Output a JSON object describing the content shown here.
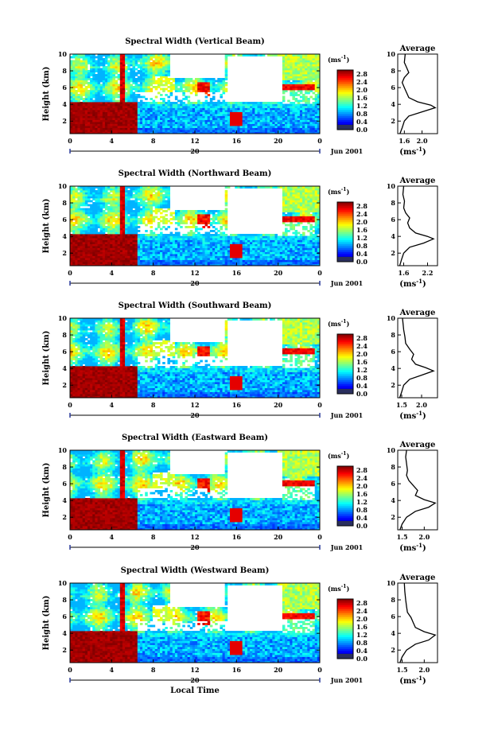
{
  "chart_data": [
    {
      "type": "heatmap",
      "title": "Spectral Width (Vertical Beam)",
      "ylabel": "Height (km)",
      "x_ticks": [
        "0",
        "4",
        "8",
        "12",
        "16",
        "20",
        "0"
      ],
      "y_ticks": [
        "2",
        "4",
        "6",
        "8",
        "10"
      ],
      "xlim": [
        0,
        24
      ],
      "ylim": [
        0.5,
        10
      ],
      "date_tick": "20",
      "date_label": "Jun 2001",
      "colorbar": {
        "unit": "(ms",
        "unit_exp": "-1",
        "unit_close": ")",
        "ticks": [
          "0.0",
          "0.4",
          "0.8",
          "1.2",
          "1.6",
          "2.0",
          "2.4",
          "2.8"
        ],
        "range": [
          0,
          3.0
        ]
      },
      "profile": {
        "title": "Average",
        "x_ticks": [
          "1.6",
          "2.0"
        ],
        "y_ticks": [
          "2",
          "4",
          "6",
          "8",
          "10"
        ],
        "xlim": [
          1.45,
          2.35
        ],
        "xlabel": "(ms",
        "xlabel_exp": "-1",
        "xlabel_close": ")",
        "points": [
          [
            1.5,
            0.5
          ],
          [
            1.55,
            1.2
          ],
          [
            1.6,
            2.0
          ],
          [
            1.7,
            2.6
          ],
          [
            2.0,
            3.1
          ],
          [
            2.3,
            3.6
          ],
          [
            2.2,
            3.9
          ],
          [
            1.9,
            4.3
          ],
          [
            1.7,
            4.8
          ],
          [
            1.65,
            5.4
          ],
          [
            1.6,
            6.0
          ],
          [
            1.55,
            6.6
          ],
          [
            1.6,
            7.2
          ],
          [
            1.7,
            7.8
          ],
          [
            1.65,
            8.4
          ],
          [
            1.6,
            9.0
          ],
          [
            1.62,
            10.0
          ]
        ]
      }
    },
    {
      "type": "heatmap",
      "title": "Spectral Width (Northward Beam)",
      "ylabel": "Height (km)",
      "x_ticks": [
        "0",
        "4",
        "8",
        "12",
        "16",
        "20",
        "0"
      ],
      "y_ticks": [
        "2",
        "4",
        "6",
        "8",
        "10"
      ],
      "xlim": [
        0,
        24
      ],
      "ylim": [
        0.5,
        10
      ],
      "date_tick": "20",
      "date_label": "Jun 2001",
      "colorbar": {
        "unit": "(ms",
        "unit_exp": "-1",
        "unit_close": ")",
        "ticks": [
          "0.0",
          "0.4",
          "0.8",
          "1.2",
          "1.6",
          "2.0",
          "2.4",
          "2.8"
        ],
        "range": [
          0,
          3.0
        ]
      },
      "profile": {
        "title": "Average",
        "x_ticks": [
          "1.6",
          "2.2"
        ],
        "y_ticks": [
          "2",
          "4",
          "6",
          "8",
          "10"
        ],
        "xlim": [
          1.45,
          2.45
        ],
        "xlabel": "(ms",
        "xlabel_exp": "-1",
        "xlabel_close": ")",
        "points": [
          [
            1.5,
            0.5
          ],
          [
            1.55,
            1.3
          ],
          [
            1.6,
            2.0
          ],
          [
            1.75,
            2.7
          ],
          [
            2.1,
            3.2
          ],
          [
            2.35,
            3.7
          ],
          [
            2.2,
            4.0
          ],
          [
            1.9,
            4.4
          ],
          [
            1.75,
            5.0
          ],
          [
            1.7,
            5.6
          ],
          [
            1.75,
            6.2
          ],
          [
            1.65,
            6.8
          ],
          [
            1.6,
            7.4
          ],
          [
            1.62,
            8.2
          ],
          [
            1.58,
            9.0
          ],
          [
            1.6,
            10.0
          ]
        ]
      }
    },
    {
      "type": "heatmap",
      "title": "Spectral Width (Southward Beam)",
      "ylabel": "Height (km)",
      "x_ticks": [
        "0",
        "4",
        "8",
        "12",
        "16",
        "20",
        "0"
      ],
      "y_ticks": [
        "2",
        "4",
        "6",
        "8",
        "10"
      ],
      "xlim": [
        0,
        24
      ],
      "ylim": [
        0.5,
        10
      ],
      "date_tick": "20",
      "date_label": "Jun 2001",
      "colorbar": {
        "unit": "(ms",
        "unit_exp": "-1",
        "unit_close": ")",
        "ticks": [
          "0.0",
          "0.4",
          "0.8",
          "1.2",
          "1.6",
          "2.0",
          "2.4",
          "2.8"
        ],
        "range": [
          0,
          3.0
        ]
      },
      "profile": {
        "title": "Average",
        "x_ticks": [
          "1.5",
          "2.0"
        ],
        "y_ticks": [
          "2",
          "4",
          "6",
          "8",
          "10"
        ],
        "xlim": [
          1.4,
          2.4
        ],
        "xlabel": "(ms",
        "xlabel_exp": "-1",
        "xlabel_close": ")",
        "points": [
          [
            1.45,
            0.5
          ],
          [
            1.5,
            1.2
          ],
          [
            1.55,
            2.0
          ],
          [
            1.7,
            2.7
          ],
          [
            2.0,
            3.2
          ],
          [
            2.3,
            3.7
          ],
          [
            2.1,
            4.1
          ],
          [
            1.85,
            4.5
          ],
          [
            1.75,
            5.1
          ],
          [
            1.8,
            5.7
          ],
          [
            1.7,
            6.3
          ],
          [
            1.6,
            7.0
          ],
          [
            1.58,
            7.8
          ],
          [
            1.55,
            8.6
          ],
          [
            1.52,
            10.0
          ]
        ]
      }
    },
    {
      "type": "heatmap",
      "title": "Spectral Width (Eastward Beam)",
      "ylabel": "Height (km)",
      "x_ticks": [
        "0",
        "4",
        "8",
        "12",
        "16",
        "20",
        "0"
      ],
      "y_ticks": [
        "2",
        "4",
        "6",
        "8",
        "10"
      ],
      "xlim": [
        0,
        24
      ],
      "ylim": [
        0.5,
        10
      ],
      "date_tick": "20",
      "date_label": "Jun 2001",
      "colorbar": {
        "unit": "(ms",
        "unit_exp": "-1",
        "unit_close": ")",
        "ticks": [
          "0.0",
          "0.4",
          "0.8",
          "1.2",
          "1.6",
          "2.0",
          "2.4",
          "2.8"
        ],
        "range": [
          0,
          3.0
        ]
      },
      "profile": {
        "title": "Average",
        "x_ticks": [
          "1.5",
          "2.0"
        ],
        "y_ticks": [
          "2",
          "4",
          "6",
          "8",
          "10"
        ],
        "xlim": [
          1.4,
          2.3
        ],
        "xlabel": "(ms",
        "xlabel_exp": "-1",
        "xlabel_close": ")",
        "points": [
          [
            1.45,
            0.5
          ],
          [
            1.5,
            1.2
          ],
          [
            1.6,
            2.0
          ],
          [
            1.8,
            2.7
          ],
          [
            2.1,
            3.2
          ],
          [
            2.25,
            3.7
          ],
          [
            2.0,
            4.1
          ],
          [
            1.8,
            4.6
          ],
          [
            1.85,
            5.2
          ],
          [
            1.75,
            5.8
          ],
          [
            1.65,
            6.4
          ],
          [
            1.6,
            7.0
          ],
          [
            1.62,
            7.6
          ],
          [
            1.6,
            8.4
          ],
          [
            1.58,
            9.2
          ],
          [
            1.6,
            10.0
          ]
        ]
      }
    },
    {
      "type": "heatmap",
      "title": "Spectral Width (Westward Beam)",
      "ylabel": "Height (km)",
      "xlabel": "Local Time",
      "x_ticks": [
        "0",
        "4",
        "8",
        "12",
        "16",
        "20",
        "0"
      ],
      "y_ticks": [
        "2",
        "4",
        "6",
        "8",
        "10"
      ],
      "xlim": [
        0,
        24
      ],
      "ylim": [
        0.5,
        10
      ],
      "date_tick": "20",
      "date_label": "Jun 2001",
      "colorbar": {
        "unit": "(ms",
        "unit_exp": "-1",
        "unit_close": ")",
        "ticks": [
          "0.0",
          "0.4",
          "0.8",
          "1.2",
          "1.6",
          "2.0",
          "2.4",
          "2.8"
        ],
        "range": [
          0,
          3.0
        ]
      },
      "profile": {
        "title": "Average",
        "x_ticks": [
          "1.5",
          "2.0"
        ],
        "y_ticks": [
          "2",
          "4",
          "6",
          "8",
          "10"
        ],
        "xlim": [
          1.4,
          2.3
        ],
        "xlabel": "(ms",
        "xlabel_exp": "-1",
        "xlabel_close": ")",
        "points": [
          [
            1.45,
            0.5
          ],
          [
            1.5,
            1.2
          ],
          [
            1.6,
            2.0
          ],
          [
            1.8,
            2.7
          ],
          [
            2.1,
            3.2
          ],
          [
            2.25,
            3.8
          ],
          [
            2.0,
            4.2
          ],
          [
            1.8,
            4.7
          ],
          [
            1.75,
            5.3
          ],
          [
            1.7,
            5.9
          ],
          [
            1.62,
            6.5
          ],
          [
            1.6,
            7.2
          ],
          [
            1.58,
            8.0
          ],
          [
            1.56,
            9.0
          ],
          [
            1.55,
            10.0
          ]
        ]
      }
    }
  ]
}
